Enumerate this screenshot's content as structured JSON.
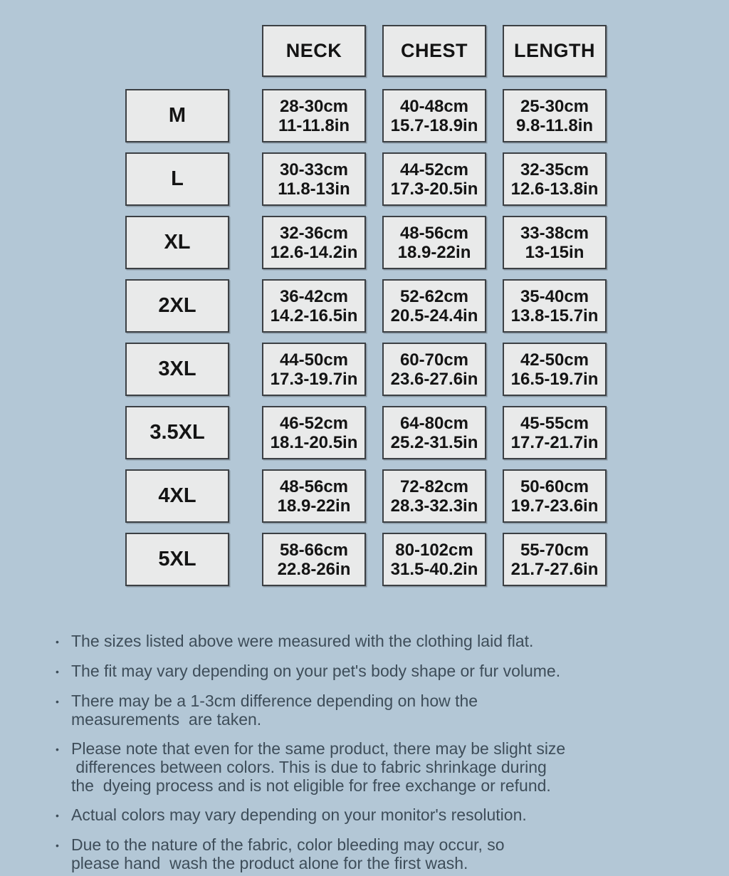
{
  "size_chart": {
    "columns": [
      "NECK",
      "CHEST",
      "LENGTH"
    ],
    "rows": [
      {
        "size": "M",
        "cells": [
          {
            "cm": "28-30cm",
            "in": "11-11.8in"
          },
          {
            "cm": "40-48cm",
            "in": "15.7-18.9in"
          },
          {
            "cm": "25-30cm",
            "in": "9.8-11.8in"
          }
        ]
      },
      {
        "size": "L",
        "cells": [
          {
            "cm": "30-33cm",
            "in": "11.8-13in"
          },
          {
            "cm": "44-52cm",
            "in": "17.3-20.5in"
          },
          {
            "cm": "32-35cm",
            "in": "12.6-13.8in"
          }
        ]
      },
      {
        "size": "XL",
        "cells": [
          {
            "cm": "32-36cm",
            "in": "12.6-14.2in"
          },
          {
            "cm": "48-56cm",
            "in": "18.9-22in"
          },
          {
            "cm": "33-38cm",
            "in": "13-15in"
          }
        ]
      },
      {
        "size": "2XL",
        "cells": [
          {
            "cm": "36-42cm",
            "in": "14.2-16.5in"
          },
          {
            "cm": "52-62cm",
            "in": "20.5-24.4in"
          },
          {
            "cm": "35-40cm",
            "in": "13.8-15.7in"
          }
        ]
      },
      {
        "size": "3XL",
        "cells": [
          {
            "cm": "44-50cm",
            "in": "17.3-19.7in"
          },
          {
            "cm": "60-70cm",
            "in": "23.6-27.6in"
          },
          {
            "cm": "42-50cm",
            "in": "16.5-19.7in"
          }
        ]
      },
      {
        "size": "3.5XL",
        "cells": [
          {
            "cm": "46-52cm",
            "in": "18.1-20.5in"
          },
          {
            "cm": "64-80cm",
            "in": "25.2-31.5in"
          },
          {
            "cm": "45-55cm",
            "in": "17.7-21.7in"
          }
        ]
      },
      {
        "size": "4XL",
        "cells": [
          {
            "cm": "48-56cm",
            "in": "18.9-22in"
          },
          {
            "cm": "72-82cm",
            "in": "28.3-32.3in"
          },
          {
            "cm": "50-60cm",
            "in": "19.7-23.6in"
          }
        ]
      },
      {
        "size": "5XL",
        "cells": [
          {
            "cm": "58-66cm",
            "in": "22.8-26in"
          },
          {
            "cm": "80-102cm",
            "in": "31.5-40.2in"
          },
          {
            "cm": "55-70cm",
            "in": "21.7-27.6in"
          }
        ]
      }
    ]
  },
  "notes": {
    "bullet_glyph": "•",
    "items": [
      "The sizes listed above were measured with the clothing laid flat.",
      "The fit may vary depending on your pet's body shape or fur volume.",
      "There may be a 1-3cm difference depending on how the\nmeasurements  are taken.",
      "Please note that even for the same product, there may be slight size\n differences between colors. This is due to fabric shrinkage during\nthe  dyeing process and is not eligible for free exchange or refund.",
      "Actual colors may vary depending on your monitor's resolution.",
      "Due to the nature of the fabric, color bleeding may occur, so\nplease hand  wash the product alone for the first wash."
    ]
  },
  "colors": {
    "background": "#b3c7d6",
    "cell_fill": "#e9eaea",
    "cell_border": "#3c4044",
    "table_text": "#141414",
    "note_text": "#3e4d59"
  }
}
